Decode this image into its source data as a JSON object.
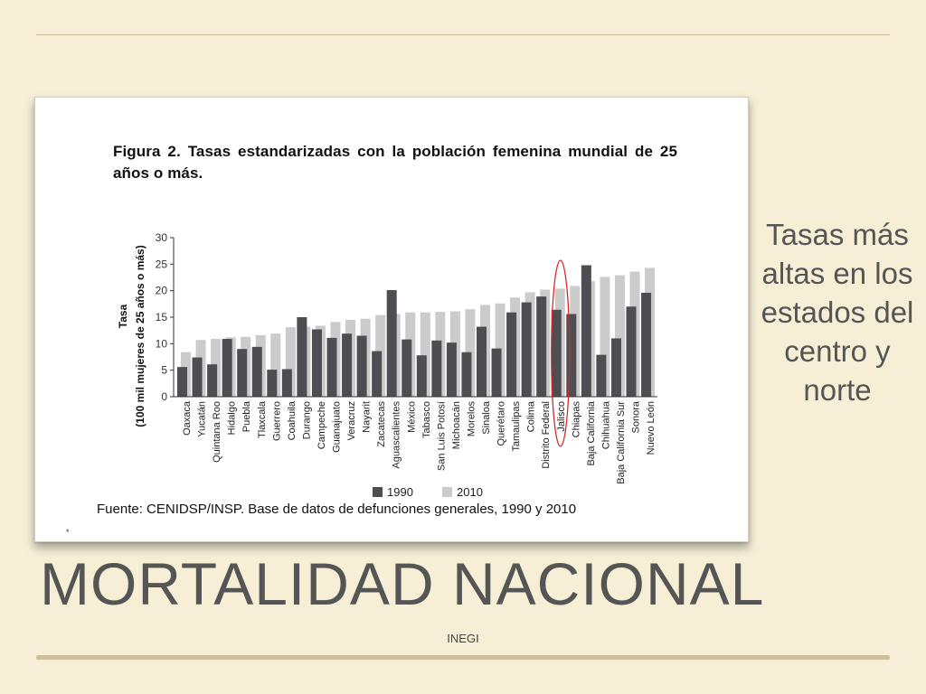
{
  "slide": {
    "title": "MORTALIDAD NACIONAL",
    "side_note": "Tasas más altas en los estados del centro y norte",
    "footer": "INEGI",
    "background": "#f6efd6"
  },
  "figure": {
    "title": "Figura 2. Tasas estandarizadas con la población femenina mundial de 25 años o más.",
    "source": "Fuente: CENIDSP/INSP. Base de datos de defunciones generales, 1990 y 2010",
    "stray_mark": "*"
  },
  "chart_data": {
    "type": "bar",
    "ylabel": "Tasa",
    "ylabel_sub": "(100 mil mujeres de 25 años o más)",
    "ylim": [
      0,
      30
    ],
    "yticks": [
      0,
      5,
      10,
      15,
      20,
      25,
      30
    ],
    "grid": false,
    "legend_position": "bottom",
    "categories": [
      "Oaxaca",
      "Yucatán",
      "Quintana Roo",
      "Hidalgo",
      "Puebla",
      "Tlaxcala",
      "Guerrero",
      "Coahuila",
      "Durango",
      "Campeche",
      "Guanajuato",
      "Veracruz",
      "Nayarit",
      "Zacatecas",
      "Aguascalientes",
      "México",
      "Tabasco",
      "San Luis Potosí",
      "Michoacán",
      "Morelos",
      "Sinaloa",
      "Querétaro",
      "Tamaulipas",
      "Colima",
      "Distrito Federal",
      "Jalisco",
      "Chiapas",
      "Baja California",
      "Chihuahua",
      "Baja California Sur",
      "Sonora",
      "Nuevo León"
    ],
    "series": [
      {
        "name": "1990",
        "color": "#4d4d52",
        "values": [
          5.6,
          7.4,
          6.1,
          10.9,
          9.0,
          9.4,
          5.1,
          5.2,
          15.0,
          12.7,
          11.1,
          11.9,
          11.5,
          8.6,
          20.1,
          10.8,
          7.8,
          10.6,
          10.2,
          8.4,
          13.2,
          9.1,
          15.9,
          17.8,
          18.9,
          16.4,
          15.6,
          24.8,
          7.9,
          11.0,
          17.0,
          19.6
        ]
      },
      {
        "name": "2010",
        "color": "#cbcbcb",
        "values": [
          8.4,
          10.7,
          10.9,
          11.2,
          11.3,
          11.6,
          11.9,
          13.1,
          13.2,
          13.4,
          14.1,
          14.5,
          14.7,
          15.4,
          15.6,
          15.9,
          15.9,
          16.0,
          16.1,
          16.5,
          17.3,
          17.6,
          18.7,
          19.7,
          20.2,
          20.4,
          20.9,
          21.8,
          22.6,
          22.9,
          23.6,
          24.3
        ]
      }
    ],
    "highlight": {
      "category": "Jalisco",
      "marker": "ellipse",
      "color": "#d62a2a"
    }
  }
}
